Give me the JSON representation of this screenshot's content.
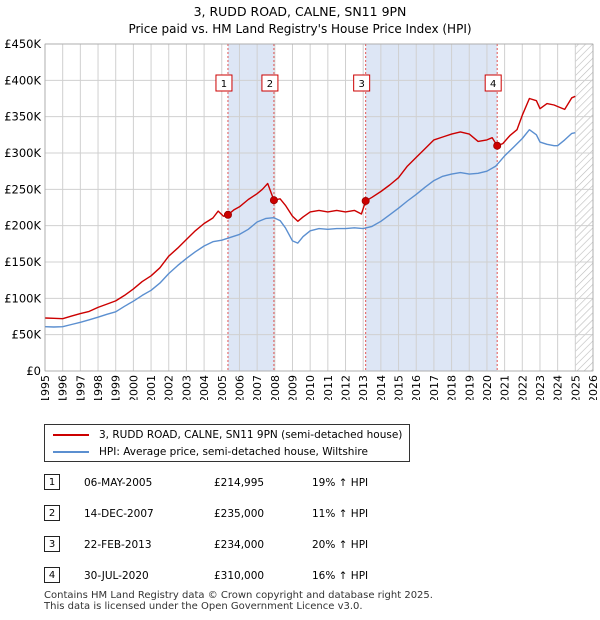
{
  "title": "3, RUDD ROAD, CALNE, SN11 9PN",
  "subtitle": "Price paid vs. HM Land Registry's House Price Index (HPI)",
  "chart_data": {
    "type": "line",
    "xlim": [
      1995,
      2026
    ],
    "ylim": [
      0,
      450000
    ],
    "y_ticks": [
      0,
      50000,
      100000,
      150000,
      200000,
      250000,
      300000,
      350000,
      400000,
      450000
    ],
    "y_tick_labels": [
      "£0",
      "£50K",
      "£100K",
      "£150K",
      "£200K",
      "£250K",
      "£300K",
      "£350K",
      "£400K",
      "£450K"
    ],
    "x_ticks": [
      1995,
      1996,
      1997,
      1998,
      1999,
      2000,
      2001,
      2002,
      2003,
      2004,
      2005,
      2006,
      2007,
      2008,
      2009,
      2010,
      2011,
      2012,
      2013,
      2014,
      2015,
      2016,
      2017,
      2018,
      2019,
      2020,
      2021,
      2022,
      2023,
      2024,
      2025,
      2026
    ],
    "x_tick_labels": [
      "1995",
      "1996",
      "1997",
      "1998",
      "1999",
      "2000",
      "2001",
      "2002",
      "2003",
      "2004",
      "2005",
      "2006",
      "2007",
      "2008",
      "2009",
      "2010",
      "2011",
      "2012",
      "2013",
      "2014",
      "2015",
      "2016",
      "2017",
      "2018",
      "2019",
      "2020",
      "2021",
      "2022",
      "2023",
      "2024",
      "2025",
      "2026"
    ],
    "grid": true,
    "hatched_future_from": 2025.0,
    "shaded_periods": [
      [
        2005.35,
        2007.95
      ],
      [
        2013.14,
        2020.58
      ]
    ],
    "series": [
      {
        "name": "3, RUDD ROAD, CALNE, SN11 9PN (semi-detached house)",
        "color": "#cc0000",
        "x": [
          1995.0,
          1995.5,
          1996.0,
          1996.5,
          1997.0,
          1997.5,
          1998.0,
          1998.5,
          1999.0,
          1999.5,
          2000.0,
          2000.5,
          2001.0,
          2001.5,
          2002.0,
          2002.5,
          2003.0,
          2003.5,
          2004.0,
          2004.5,
          2004.8,
          2005.1,
          2005.35,
          2005.7,
          2006.0,
          2006.5,
          2007.0,
          2007.3,
          2007.6,
          2007.95,
          2008.3,
          2008.6,
          2009.0,
          2009.3,
          2009.6,
          2010.0,
          2010.5,
          2011.0,
          2011.5,
          2012.0,
          2012.5,
          2012.9,
          2013.14,
          2013.5,
          2014.0,
          2014.5,
          2015.0,
          2015.5,
          2016.0,
          2016.5,
          2017.0,
          2017.5,
          2018.0,
          2018.5,
          2019.0,
          2019.5,
          2020.0,
          2020.3,
          2020.58,
          2020.9,
          2021.3,
          2021.7,
          2022.0,
          2022.4,
          2022.8,
          2023.0,
          2023.4,
          2023.8,
          2024.0,
          2024.4,
          2024.8,
          2025.0
        ],
        "values": [
          73000,
          72500,
          72000,
          75500,
          79000,
          82000,
          87500,
          92000,
          96500,
          104000,
          113000,
          123000,
          131000,
          142000,
          158000,
          169000,
          181000,
          193000,
          203000,
          210500,
          220000,
          213000,
          214995,
          222000,
          226000,
          236000,
          244000,
          250000,
          258000,
          235000,
          237000,
          228000,
          213000,
          206000,
          212000,
          219000,
          221000,
          219000,
          221000,
          219000,
          221000,
          216000,
          234000,
          239000,
          247000,
          256000,
          266000,
          282000,
          294000,
          306000,
          318000,
          322000,
          326000,
          329000,
          326000,
          316000,
          318000,
          321000,
          310000,
          313000,
          324000,
          332000,
          352000,
          375000,
          372000,
          361000,
          368000,
          366000,
          364000,
          360000,
          376000,
          378000
        ]
      },
      {
        "name": "HPI: Average price, semi-detached house, Wiltshire",
        "color": "#5b8fd0",
        "x": [
          1995.0,
          1995.5,
          1996.0,
          1996.5,
          1997.0,
          1997.5,
          1998.0,
          1998.5,
          1999.0,
          1999.5,
          2000.0,
          2000.5,
          2001.0,
          2001.5,
          2002.0,
          2002.5,
          2003.0,
          2003.5,
          2004.0,
          2004.5,
          2005.0,
          2005.5,
          2006.0,
          2006.5,
          2007.0,
          2007.5,
          2007.95,
          2008.3,
          2008.6,
          2009.0,
          2009.3,
          2009.6,
          2010.0,
          2010.5,
          2011.0,
          2011.5,
          2012.0,
          2012.5,
          2013.0,
          2013.5,
          2014.0,
          2014.5,
          2015.0,
          2015.5,
          2016.0,
          2016.5,
          2017.0,
          2017.5,
          2018.0,
          2018.5,
          2019.0,
          2019.5,
          2020.0,
          2020.5,
          2021.0,
          2021.5,
          2022.0,
          2022.4,
          2022.8,
          2023.0,
          2023.4,
          2023.8,
          2024.0,
          2024.4,
          2024.8,
          2025.0
        ],
        "values": [
          61000,
          60500,
          61000,
          64000,
          67000,
          70500,
          74000,
          78000,
          81500,
          89000,
          96000,
          104000,
          111000,
          121000,
          134000,
          145000,
          155000,
          164000,
          172000,
          178000,
          180000,
          184000,
          188000,
          195000,
          205000,
          210000,
          211000,
          207000,
          197000,
          179000,
          176000,
          185000,
          193000,
          196000,
          195000,
          196000,
          196000,
          197000,
          196000,
          199000,
          206000,
          215000,
          224000,
          234000,
          243000,
          253000,
          262000,
          268000,
          271000,
          273000,
          271000,
          272000,
          275000,
          282000,
          296000,
          308000,
          320000,
          332000,
          325000,
          315000,
          312000,
          310000,
          310000,
          318000,
          327000,
          328000
        ]
      }
    ],
    "transactions": [
      {
        "label": "1",
        "x": 2005.35,
        "value": 214995
      },
      {
        "label": "2",
        "x": 2007.95,
        "value": 235000
      },
      {
        "label": "3",
        "x": 2013.14,
        "value": 234000
      },
      {
        "label": "4",
        "x": 2020.58,
        "value": 310000
      }
    ]
  },
  "legend": {
    "property_label": "3, RUDD ROAD, CALNE, SN11 9PN (semi-detached house)",
    "hpi_label": "HPI: Average price, semi-detached house, Wiltshire"
  },
  "table": [
    {
      "num": "1",
      "date": "06-MAY-2005",
      "price": "£214,995",
      "hpi": "19% ↑ HPI"
    },
    {
      "num": "2",
      "date": "14-DEC-2007",
      "price": "£235,000",
      "hpi": "11% ↑ HPI"
    },
    {
      "num": "3",
      "date": "22-FEB-2013",
      "price": "£234,000",
      "hpi": "20% ↑ HPI"
    },
    {
      "num": "4",
      "date": "30-JUL-2020",
      "price": "£310,000",
      "hpi": "16% ↑ HPI"
    }
  ],
  "footer": {
    "line1": "Contains HM Land Registry data © Crown copyright and database right 2025.",
    "line2": "This data is licensed under the Open Government Licence v3.0."
  },
  "colors": {
    "property": "#cc0000",
    "hpi": "#5b8fd0",
    "shade": "#dde6f5",
    "grid": "#d0d0d0"
  }
}
